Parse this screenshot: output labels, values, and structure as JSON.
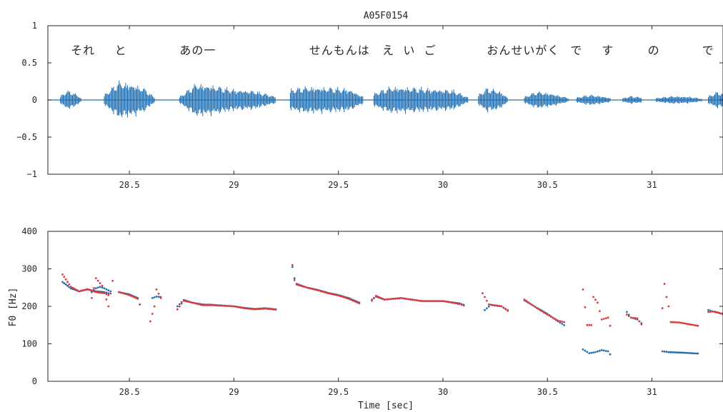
{
  "chart_data": [
    {
      "type": "line",
      "title": "A05F0154",
      "xlabel": "",
      "ylabel": "",
      "xlim": [
        28.11,
        31.34
      ],
      "ylim": [
        -1,
        1
      ],
      "xticks": [
        28.5,
        29,
        29.5,
        30,
        30.5,
        31
      ],
      "xtick_labels": [
        "28.5",
        "29",
        "29.5",
        "30",
        "30.5",
        "31"
      ],
      "yticks": [
        -1,
        -0.5,
        0,
        0.5,
        1
      ],
      "ytick_labels": [
        "−1",
        "−0.5",
        "0",
        "0.5",
        "1"
      ],
      "grid": false,
      "color": "#1f6fb4",
      "series": [
        {
          "kind": "waveform_envelope",
          "segments": [
            {
              "x": [
                28.17,
                28.2,
                28.23,
                28.27
              ],
              "amp": [
                0.06,
                0.14,
                0.12,
                0.03
              ]
            },
            {
              "x": [
                28.38,
                28.45,
                28.52,
                28.57,
                28.62
              ],
              "amp": [
                0.08,
                0.28,
                0.24,
                0.18,
                0.04
              ]
            },
            {
              "x": [
                28.74,
                28.82,
                28.9,
                29.0,
                29.1,
                29.2
              ],
              "amp": [
                0.05,
                0.25,
                0.22,
                0.16,
                0.14,
                0.05
              ]
            },
            {
              "x": [
                29.27,
                29.35,
                29.45,
                29.55,
                29.62
              ],
              "amp": [
                0.16,
                0.2,
                0.19,
                0.17,
                0.05
              ]
            },
            {
              "x": [
                29.67,
                29.75,
                29.85,
                29.95,
                30.05,
                30.12
              ],
              "amp": [
                0.1,
                0.2,
                0.19,
                0.17,
                0.15,
                0.04
              ]
            },
            {
              "x": [
                30.17,
                30.21,
                30.27,
                30.31
              ],
              "amp": [
                0.08,
                0.18,
                0.14,
                0.04
              ]
            },
            {
              "x": [
                30.39,
                30.45,
                30.52,
                30.6
              ],
              "amp": [
                0.05,
                0.13,
                0.1,
                0.03
              ]
            },
            {
              "x": [
                30.64,
                30.7,
                30.76,
                30.8
              ],
              "amp": [
                0.04,
                0.08,
                0.06,
                0.03
              ]
            },
            {
              "x": [
                30.86,
                30.9,
                30.95
              ],
              "amp": [
                0.03,
                0.06,
                0.04
              ]
            },
            {
              "x": [
                31.02,
                31.1,
                31.18,
                31.24
              ],
              "amp": [
                0.03,
                0.06,
                0.05,
                0.02
              ]
            },
            {
              "x": [
                31.27,
                31.31,
                31.34
              ],
              "amp": [
                0.06,
                0.12,
                0.11
              ]
            }
          ]
        }
      ],
      "annotations": [
        {
          "text": "それ",
          "x": 28.22
        },
        {
          "text": "と",
          "x": 28.43
        },
        {
          "text": "あの一",
          "x": 28.74
        },
        {
          "text": "せんもんは",
          "x": 29.36
        },
        {
          "text": "え",
          "x": 29.71
        },
        {
          "text": "い",
          "x": 29.81
        },
        {
          "text": "ご",
          "x": 29.91
        },
        {
          "text": "おんせいがく",
          "x": 30.21
        },
        {
          "text": "で",
          "x": 30.61
        },
        {
          "text": "す",
          "x": 30.76
        },
        {
          "text": "の",
          "x": 30.98
        },
        {
          "text": "で",
          "x": 31.24
        }
      ]
    },
    {
      "type": "scatter",
      "title": "",
      "xlabel": "Time [sec]",
      "ylabel": "F0 [Hz]",
      "xlim": [
        28.11,
        31.34
      ],
      "ylim": [
        0,
        400
      ],
      "xticks": [
        28.5,
        29,
        29.5,
        30,
        30.5,
        31
      ],
      "xtick_labels": [
        "28.5",
        "29",
        "29.5",
        "30",
        "30.5",
        "31"
      ],
      "yticks": [
        0,
        100,
        200,
        300,
        400
      ],
      "ytick_labels": [
        "0",
        "100",
        "200",
        "300",
        "400"
      ],
      "grid": false,
      "series": [
        {
          "name": "",
          "color": "#1f6fb4",
          "contours": [
            [
              [
                28.18,
                265
              ],
              [
                28.22,
                248
              ],
              [
                28.26,
                240
              ],
              [
                28.3,
                245
              ],
              [
                28.34,
                240
              ],
              [
                28.38,
                238
              ],
              [
                28.4,
                235
              ]
            ],
            [
              [
                28.32,
                238
              ],
              [
                28.34,
                248
              ],
              [
                28.36,
                252
              ],
              [
                28.38,
                248
              ],
              [
                28.41,
                240
              ]
            ],
            [
              [
                28.45,
                238
              ],
              [
                28.5,
                232
              ],
              [
                28.54,
                222
              ],
              [
                28.55,
                205
              ]
            ],
            [
              [
                28.61,
                222
              ],
              [
                28.63,
                226
              ],
              [
                28.65,
                225
              ]
            ],
            [
              [
                28.73,
                200
              ],
              [
                28.76,
                217
              ],
              [
                28.8,
                210
              ],
              [
                28.85,
                205
              ],
              [
                28.9,
                204
              ],
              [
                29.0,
                200
              ],
              [
                29.05,
                196
              ],
              [
                29.1,
                193
              ],
              [
                29.15,
                195
              ],
              [
                29.2,
                192
              ]
            ],
            [
              [
                29.28,
                305
              ],
              [
                29.29,
                275
              ],
              [
                29.3,
                260
              ],
              [
                29.35,
                250
              ],
              [
                29.4,
                244
              ],
              [
                29.45,
                236
              ],
              [
                29.5,
                230
              ],
              [
                29.55,
                222
              ],
              [
                29.6,
                210
              ]
            ],
            [
              [
                29.66,
                218
              ],
              [
                29.68,
                226
              ],
              [
                29.72,
                218
              ],
              [
                29.8,
                222
              ],
              [
                29.9,
                214
              ],
              [
                30.0,
                214
              ],
              [
                30.08,
                208
              ],
              [
                30.1,
                204
              ]
            ],
            [
              [
                30.2,
                190
              ],
              [
                30.23,
                204
              ],
              [
                30.28,
                200
              ],
              [
                30.31,
                190
              ]
            ],
            [
              [
                30.39,
                216
              ],
              [
                30.45,
                196
              ],
              [
                30.5,
                180
              ],
              [
                30.55,
                160
              ],
              [
                30.58,
                150
              ]
            ],
            [
              [
                30.67,
                85
              ],
              [
                30.7,
                75
              ],
              [
                30.73,
                78
              ],
              [
                30.76,
                83
              ],
              [
                30.79,
                80
              ],
              [
                30.8,
                72
              ]
            ],
            [
              [
                30.88,
                185
              ],
              [
                30.9,
                170
              ],
              [
                30.93,
                165
              ],
              [
                30.95,
                155
              ]
            ],
            [
              [
                31.05,
                80
              ],
              [
                31.08,
                78
              ],
              [
                31.12,
                77
              ],
              [
                31.16,
                76
              ],
              [
                31.22,
                74
              ]
            ],
            [
              [
                31.27,
                190
              ],
              [
                31.3,
                185
              ],
              [
                31.34,
                180
              ]
            ]
          ]
        },
        {
          "name": "",
          "color": "#d93a3a",
          "contours": [
            [
              [
                28.18,
                285
              ],
              [
                28.22,
                252
              ],
              [
                28.26,
                240
              ],
              [
                28.3,
                246
              ],
              [
                28.34,
                238
              ],
              [
                28.38,
                235
              ],
              [
                28.4,
                230
              ]
            ],
            [
              [
                28.32,
                222
              ],
              [
                28.34,
                275
              ],
              [
                28.37,
                255
              ],
              [
                28.4,
                200
              ],
              [
                28.42,
                268
              ]
            ],
            [
              [
                28.45,
                238
              ],
              [
                28.5,
                230
              ],
              [
                28.54,
                220
              ],
              [
                28.55,
                205
              ]
            ],
            [
              [
                28.6,
                160
              ],
              [
                28.62,
                200
              ],
              [
                28.63,
                245
              ],
              [
                28.65,
                222
              ]
            ],
            [
              [
                28.73,
                192
              ],
              [
                28.76,
                215
              ],
              [
                28.8,
                210
              ],
              [
                28.85,
                203
              ],
              [
                28.9,
                203
              ],
              [
                29.0,
                200
              ],
              [
                29.05,
                195
              ],
              [
                29.1,
                192
              ],
              [
                29.15,
                194
              ],
              [
                29.2,
                191
              ]
            ],
            [
              [
                29.28,
                310
              ],
              [
                29.29,
                270
              ],
              [
                29.3,
                258
              ],
              [
                29.35,
                250
              ],
              [
                29.4,
                243
              ],
              [
                29.45,
                235
              ],
              [
                29.5,
                229
              ],
              [
                29.55,
                220
              ],
              [
                29.6,
                208
              ]
            ],
            [
              [
                29.66,
                215
              ],
              [
                29.68,
                228
              ],
              [
                29.72,
                218
              ],
              [
                29.8,
                222
              ],
              [
                29.9,
                214
              ],
              [
                30.0,
                214
              ],
              [
                30.08,
                206
              ],
              [
                30.1,
                202
              ]
            ],
            [
              [
                30.19,
                235
              ],
              [
                30.22,
                205
              ],
              [
                30.28,
                200
              ],
              [
                30.31,
                188
              ]
            ],
            [
              [
                30.39,
                218
              ],
              [
                30.45,
                195
              ],
              [
                30.5,
                178
              ],
              [
                30.55,
                162
              ],
              [
                30.58,
                158
              ]
            ],
            [
              [
                30.67,
                245
              ],
              [
                30.69,
                150
              ],
              [
                30.71,
                150
              ],
              [
                30.72,
                225
              ],
              [
                30.74,
                210
              ],
              [
                30.76,
                165
              ],
              [
                30.79,
                170
              ],
              [
                30.8,
                148
              ]
            ],
            [
              [
                30.88,
                178
              ],
              [
                30.9,
                170
              ],
              [
                30.93,
                168
              ],
              [
                30.95,
                152
              ]
            ],
            [
              [
                31.05,
                195
              ],
              [
                31.06,
                260
              ],
              [
                31.07,
                225
              ],
              [
                31.08,
                200
              ],
              [
                31.09,
                158
              ],
              [
                31.13,
                157
              ],
              [
                31.18,
                152
              ],
              [
                31.22,
                148
              ]
            ],
            [
              [
                31.27,
                185
              ],
              [
                31.3,
                186
              ],
              [
                31.34,
                179
              ]
            ]
          ]
        }
      ]
    }
  ]
}
